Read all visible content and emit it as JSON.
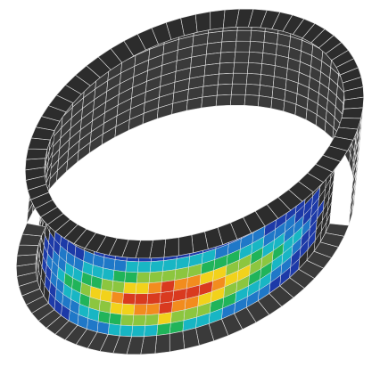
{
  "scene": {
    "subject": "fea-ring-shell-mesh",
    "colors": {
      "background": "#ffffff",
      "shell": "#3a3a3a",
      "shell_dark": "#2c2c2c",
      "inner_face": "#262626",
      "mesh_line": "#e6e6e6",
      "contour_blue": "#1d3aa8",
      "contour_light_blue": "#1f78c8",
      "contour_cyan": "#18b6c4",
      "contour_green": "#20b45a",
      "contour_lime": "#8cc63f",
      "contour_yellow": "#f2d21b",
      "contour_orange": "#f28c1e",
      "contour_red": "#d93a1f"
    }
  }
}
